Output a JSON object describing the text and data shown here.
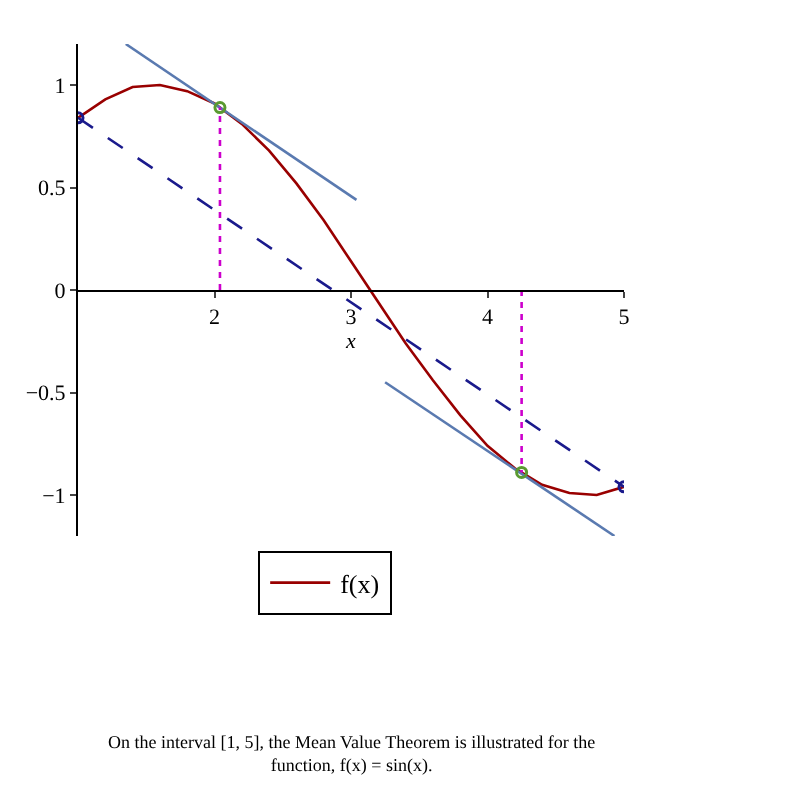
{
  "chart_data": {
    "type": "line",
    "xlabel": "x",
    "xlim": [
      1,
      5
    ],
    "ylim": [
      -1.2,
      1.2
    ],
    "xticks": [
      2,
      3,
      4,
      5
    ],
    "yticks": [
      {
        "value": -1,
        "label": "−1"
      },
      {
        "value": -0.5,
        "label": "−0.5"
      },
      0,
      0.5,
      1
    ],
    "grid": false,
    "legend": "bottom",
    "marker": "none",
    "series": [
      {
        "name": "f(x)",
        "color": "#990000",
        "line_style": "solid",
        "x": [
          1,
          1.2,
          1.4,
          1.6,
          1.8,
          2,
          2.2,
          2.4,
          2.6,
          2.8,
          3,
          3.2,
          3.4,
          3.6,
          3.8,
          4,
          4.2,
          4.4,
          4.6,
          4.8,
          5
        ],
        "values": [
          0.84,
          0.93,
          0.99,
          1.0,
          0.97,
          0.91,
          0.81,
          0.68,
          0.52,
          0.34,
          0.14,
          -0.06,
          -0.26,
          -0.44,
          -0.61,
          -0.76,
          -0.87,
          -0.95,
          -0.99,
          -1.0,
          -0.96
        ]
      },
      {
        "color": "#1a1a8c",
        "line_style": "dashed",
        "x": [
          1,
          5
        ],
        "values": [
          0.84,
          -0.96
        ]
      },
      {
        "color": "#5a7ab0",
        "line_style": "solid",
        "x": [
          1.35,
          3.04
        ],
        "values": [
          1.2,
          0.44
        ]
      },
      {
        "color": "#5a7ab0",
        "line_style": "solid",
        "x": [
          3.25,
          4.93
        ],
        "values": [
          -0.45,
          -1.2
        ]
      },
      {
        "color": "#cc00cc",
        "line_style": "dotted",
        "x": [
          2.04,
          2.04
        ],
        "values": [
          0,
          0.89
        ]
      },
      {
        "color": "#cc00cc",
        "line_style": "dotted",
        "x": [
          4.25,
          4.25
        ],
        "values": [
          0,
          -0.89
        ]
      },
      {
        "type": "scatter",
        "color": "#5a9a30",
        "marker": "circle",
        "x": [
          2.04,
          4.25
        ],
        "values": [
          0.89,
          -0.89
        ]
      },
      {
        "type": "scatter",
        "color": "#1a1a8c",
        "marker": "circle",
        "x": [
          1,
          5
        ],
        "values": [
          0.84,
          -0.96
        ]
      }
    ],
    "annotations": [
      "On the interval [1, 5], the Mean Value Theorem is illustrated for the\nfunction, f(x) = sin(x)."
    ]
  }
}
